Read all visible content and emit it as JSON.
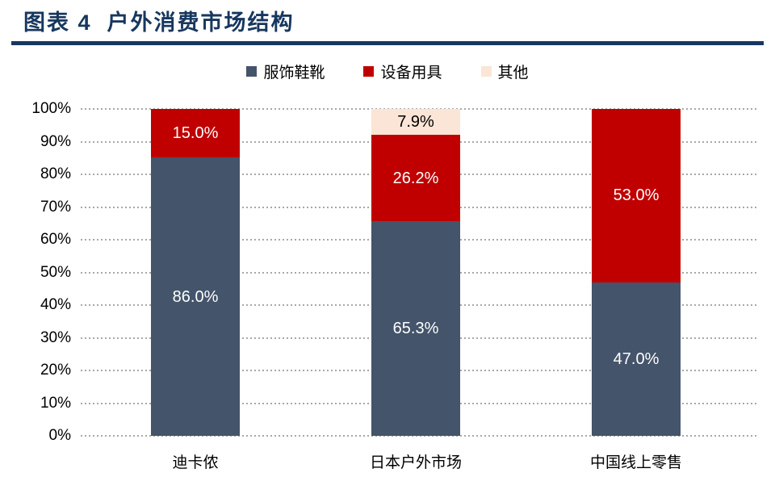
{
  "header": {
    "title": "图表 4  户外消费市场结构"
  },
  "colors": {
    "title": "#17375E",
    "rule": "#17375E",
    "background": "#FFFFFF",
    "gridline": "#A8A8A8",
    "axis_text": "#000000"
  },
  "chart_data": {
    "type": "bar",
    "stacked": true,
    "title": "图表 4  户外消费市场结构",
    "categories": [
      "迪卡侬",
      "日本户外市场",
      "中国线上零售"
    ],
    "series": [
      {
        "name": "服饰鞋靴",
        "color": "#44546A",
        "label_color": "#FFFFFF",
        "values": [
          86.0,
          65.3,
          47.0
        ]
      },
      {
        "name": "设备用具",
        "color": "#C00000",
        "label_color": "#FFFFFF",
        "values": [
          15.0,
          26.2,
          53.0
        ]
      },
      {
        "name": "其他",
        "color": "#FBE5D6",
        "label_color": "#000000",
        "values": [
          null,
          7.9,
          null
        ]
      }
    ],
    "value_label_suffix": "%",
    "yticks": [
      "0%",
      "10%",
      "20%",
      "30%",
      "40%",
      "50%",
      "60%",
      "70%",
      "80%",
      "90%",
      "100%"
    ],
    "ylim": [
      0,
      100
    ],
    "grid": "dotted-horizontal",
    "legend_position": "top-center",
    "xlabel": "",
    "ylabel": ""
  }
}
